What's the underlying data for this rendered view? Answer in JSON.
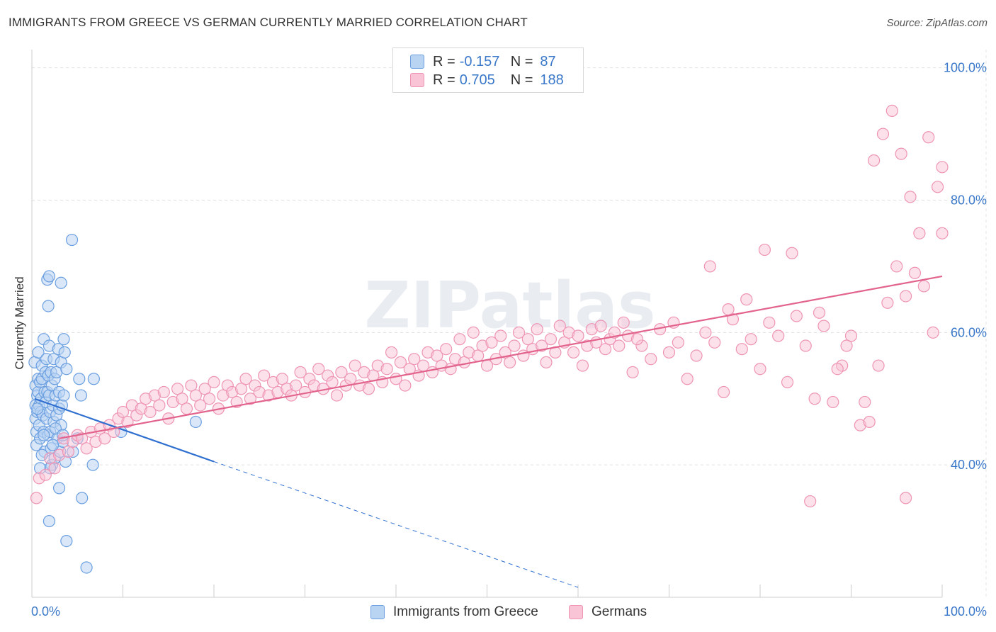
{
  "title": "IMMIGRANTS FROM GREECE VS GERMAN CURRENTLY MARRIED CORRELATION CHART",
  "source": "Source: ZipAtlas.com",
  "watermark": "ZIPatlas",
  "legend": {
    "rows": [
      {
        "r_label": "R =",
        "r_value": "-0.157",
        "n_label": "N =",
        "n_value": "87"
      },
      {
        "r_label": "R =",
        "r_value": "0.705",
        "n_label": "N =",
        "n_value": "188"
      }
    ]
  },
  "colors": {
    "greece_fill": "#b9d3f3",
    "greece_stroke": "#6b9fe0",
    "greece_line": "#2f6fd0",
    "german_fill": "#f9c4d6",
    "german_stroke": "#ee94b4",
    "german_line": "#e2648d",
    "axis_label": "#3a78c9",
    "grid": "#e0e0e0"
  },
  "chart_data": {
    "type": "scatter",
    "title": "IMMIGRANTS FROM GREECE VS GERMAN CURRENTLY MARRIED CORRELATION CHART",
    "xlabel": "",
    "ylabel": "Currently Married",
    "xlim": [
      0,
      100
    ],
    "ylim": [
      20,
      102
    ],
    "x_tick_labels": [
      "0.0%",
      "100.0%"
    ],
    "y_ticks": [
      40,
      60,
      80,
      100
    ],
    "y_tick_labels": [
      "40.0%",
      "60.0%",
      "80.0%",
      "100.0%"
    ],
    "grid": "horizontal dashed",
    "legend_placement": "top-center and bottom",
    "series": [
      {
        "name": "Immigrants from Greece",
        "r": -0.157,
        "n": 87,
        "trend": {
          "x0": 0.3,
          "y0": 50.0,
          "x1": 20.0,
          "y1": 40.5,
          "dashed_to_x": 60.0,
          "dashed_to_y": 21.5
        },
        "points": [
          [
            0.3,
            55.5
          ],
          [
            0.4,
            52
          ],
          [
            0.4,
            49
          ],
          [
            0.4,
            47
          ],
          [
            0.5,
            45
          ],
          [
            0.5,
            43
          ],
          [
            0.6,
            50.5
          ],
          [
            0.6,
            48
          ],
          [
            0.7,
            57
          ],
          [
            0.7,
            53
          ],
          [
            0.7,
            51
          ],
          [
            0.8,
            49
          ],
          [
            0.8,
            46
          ],
          [
            0.9,
            44
          ],
          [
            0.9,
            52.5
          ],
          [
            1.0,
            50
          ],
          [
            1.0,
            48
          ],
          [
            1.1,
            55
          ],
          [
            1.1,
            53
          ],
          [
            1.2,
            47.5
          ],
          [
            1.3,
            59
          ],
          [
            1.3,
            45
          ],
          [
            1.4,
            51
          ],
          [
            1.4,
            42
          ],
          [
            1.5,
            54
          ],
          [
            1.5,
            49.5
          ],
          [
            1.6,
            56
          ],
          [
            1.6,
            47
          ],
          [
            1.7,
            51
          ],
          [
            1.8,
            44.5
          ],
          [
            1.8,
            53.5
          ],
          [
            1.9,
            58
          ],
          [
            1.9,
            50.5
          ],
          [
            2.0,
            48
          ],
          [
            2.0,
            45
          ],
          [
            2.1,
            54
          ],
          [
            2.1,
            42.5
          ],
          [
            2.2,
            52
          ],
          [
            2.2,
            40
          ],
          [
            2.3,
            49
          ],
          [
            2.4,
            56
          ],
          [
            2.4,
            46.5
          ],
          [
            2.5,
            53
          ],
          [
            2.5,
            41
          ],
          [
            2.6,
            50.5
          ],
          [
            2.7,
            47.5
          ],
          [
            2.7,
            54
          ],
          [
            2.8,
            44
          ],
          [
            2.9,
            57.5
          ],
          [
            3.0,
            48.5
          ],
          [
            3.0,
            51
          ],
          [
            3.1,
            42
          ],
          [
            3.2,
            55.5
          ],
          [
            3.2,
            46
          ],
          [
            3.3,
            49
          ],
          [
            3.4,
            43.5
          ],
          [
            3.5,
            50.5
          ],
          [
            3.6,
            57
          ],
          [
            3.7,
            40.5
          ],
          [
            3.8,
            54.5
          ],
          [
            1.7,
            68
          ],
          [
            1.8,
            64
          ],
          [
            1.9,
            68.5
          ],
          [
            3.2,
            67.5
          ],
          [
            3.5,
            59
          ],
          [
            4.4,
            74
          ],
          [
            2.0,
            39.5
          ],
          [
            3.0,
            36.5
          ],
          [
            1.9,
            31.5
          ],
          [
            3.8,
            28.5
          ],
          [
            5.5,
            35
          ],
          [
            6.0,
            24.5
          ],
          [
            5.4,
            50.5
          ],
          [
            5.2,
            53
          ],
          [
            6.7,
            40
          ],
          [
            6.8,
            53
          ],
          [
            9.8,
            45
          ],
          [
            18.0,
            46.5
          ],
          [
            1.3,
            44.5
          ],
          [
            2.3,
            43
          ],
          [
            0.9,
            39.5
          ],
          [
            1.1,
            41.5
          ],
          [
            2.6,
            45.5
          ],
          [
            3.4,
            44.5
          ],
          [
            4.5,
            42
          ],
          [
            5.0,
            44
          ],
          [
            0.6,
            48.5
          ]
        ]
      },
      {
        "name": "Germans",
        "r": 0.705,
        "n": 188,
        "trend": {
          "x0": 3.0,
          "y0": 44.0,
          "x1": 100.0,
          "y1": 68.5
        },
        "points": [
          [
            0.5,
            35
          ],
          [
            0.8,
            38
          ],
          [
            1.5,
            38.5
          ],
          [
            2.0,
            41
          ],
          [
            2.5,
            39.5
          ],
          [
            3.0,
            41.5
          ],
          [
            3.5,
            44
          ],
          [
            4.0,
            42
          ],
          [
            4.5,
            43.5
          ],
          [
            5.0,
            44.5
          ],
          [
            5.5,
            44
          ],
          [
            6.0,
            42.5
          ],
          [
            6.5,
            45
          ],
          [
            7.0,
            43.5
          ],
          [
            7.5,
            45.5
          ],
          [
            8.0,
            44
          ],
          [
            8.5,
            46
          ],
          [
            9.0,
            45
          ],
          [
            9.5,
            47
          ],
          [
            10.0,
            48
          ],
          [
            10.5,
            46.5
          ],
          [
            11.0,
            49
          ],
          [
            11.5,
            47.5
          ],
          [
            12.0,
            48.5
          ],
          [
            12.5,
            50
          ],
          [
            13.0,
            48
          ],
          [
            13.5,
            50.5
          ],
          [
            14.0,
            49
          ],
          [
            14.5,
            51
          ],
          [
            15.0,
            47
          ],
          [
            15.5,
            49.5
          ],
          [
            16.0,
            51.5
          ],
          [
            16.5,
            50
          ],
          [
            17.0,
            48.5
          ],
          [
            17.5,
            52
          ],
          [
            18.0,
            50.5
          ],
          [
            18.5,
            49
          ],
          [
            19.0,
            51.5
          ],
          [
            19.5,
            50
          ],
          [
            20.0,
            52.5
          ],
          [
            20.5,
            48.5
          ],
          [
            21.0,
            50.5
          ],
          [
            21.5,
            52
          ],
          [
            22.0,
            51
          ],
          [
            22.5,
            49.5
          ],
          [
            23.0,
            51.5
          ],
          [
            23.5,
            53
          ],
          [
            24.0,
            50
          ],
          [
            24.5,
            52
          ],
          [
            25.0,
            51
          ],
          [
            25.5,
            53.5
          ],
          [
            26.0,
            50.5
          ],
          [
            26.5,
            52.5
          ],
          [
            27.0,
            51
          ],
          [
            27.5,
            53
          ],
          [
            28.0,
            51.5
          ],
          [
            28.5,
            50.5
          ],
          [
            29.0,
            52
          ],
          [
            29.5,
            54
          ],
          [
            30.0,
            51
          ],
          [
            30.5,
            53
          ],
          [
            31.0,
            52
          ],
          [
            31.5,
            54.5
          ],
          [
            32.0,
            51.5
          ],
          [
            32.5,
            53.5
          ],
          [
            33.0,
            52.5
          ],
          [
            33.5,
            50.5
          ],
          [
            34.0,
            54
          ],
          [
            34.5,
            52
          ],
          [
            35.0,
            53
          ],
          [
            35.5,
            55
          ],
          [
            36.0,
            52
          ],
          [
            36.5,
            54
          ],
          [
            37.0,
            51.5
          ],
          [
            37.5,
            53.5
          ],
          [
            38.0,
            55
          ],
          [
            38.5,
            52.5
          ],
          [
            39.0,
            54.5
          ],
          [
            39.5,
            57
          ],
          [
            40.0,
            53
          ],
          [
            40.5,
            55.5
          ],
          [
            41.0,
            52
          ],
          [
            41.5,
            54.5
          ],
          [
            42.0,
            56
          ],
          [
            42.5,
            53.5
          ],
          [
            43.0,
            55
          ],
          [
            43.5,
            57
          ],
          [
            44.0,
            54
          ],
          [
            44.5,
            56.5
          ],
          [
            45.0,
            55
          ],
          [
            45.5,
            57.5
          ],
          [
            46.0,
            54.5
          ],
          [
            46.5,
            56
          ],
          [
            47.0,
            59
          ],
          [
            47.5,
            55.5
          ],
          [
            48.0,
            57
          ],
          [
            48.5,
            60
          ],
          [
            49.0,
            56.5
          ],
          [
            49.5,
            58
          ],
          [
            50.0,
            55
          ],
          [
            50.5,
            58.5
          ],
          [
            51.0,
            56
          ],
          [
            51.5,
            59.5
          ],
          [
            52.0,
            57
          ],
          [
            52.5,
            55.5
          ],
          [
            53.0,
            58
          ],
          [
            53.5,
            60
          ],
          [
            54.0,
            56.5
          ],
          [
            54.5,
            59
          ],
          [
            55.0,
            57.5
          ],
          [
            55.5,
            60.5
          ],
          [
            56.0,
            58
          ],
          [
            56.5,
            55.5
          ],
          [
            57.0,
            59
          ],
          [
            57.5,
            57
          ],
          [
            58.0,
            61
          ],
          [
            58.5,
            58.5
          ],
          [
            59.0,
            60
          ],
          [
            59.5,
            57
          ],
          [
            60.0,
            59.5
          ],
          [
            60.5,
            55
          ],
          [
            61.0,
            58
          ],
          [
            61.5,
            60.5
          ],
          [
            62.0,
            58.5
          ],
          [
            62.5,
            61
          ],
          [
            63.0,
            57.5
          ],
          [
            63.5,
            59
          ],
          [
            64.0,
            60
          ],
          [
            64.5,
            58
          ],
          [
            65.0,
            61.5
          ],
          [
            65.5,
            59.5
          ],
          [
            66.0,
            54
          ],
          [
            67.0,
            58
          ],
          [
            68.0,
            56
          ],
          [
            69.0,
            60.5
          ],
          [
            70.0,
            57
          ],
          [
            71.0,
            58.5
          ],
          [
            72.0,
            53
          ],
          [
            73.0,
            56.5
          ],
          [
            74.0,
            60
          ],
          [
            75.0,
            58.5
          ],
          [
            76.0,
            51
          ],
          [
            77.0,
            62
          ],
          [
            78.0,
            57.5
          ],
          [
            79.0,
            59
          ],
          [
            80.0,
            54.5
          ],
          [
            81.0,
            61.5
          ],
          [
            82.0,
            59.5
          ],
          [
            83.0,
            52.5
          ],
          [
            84.0,
            62.5
          ],
          [
            85.0,
            58
          ],
          [
            86.0,
            50
          ],
          [
            87.0,
            61
          ],
          [
            88.0,
            49.5
          ],
          [
            89.0,
            55
          ],
          [
            90.0,
            59.5
          ],
          [
            91.0,
            46
          ],
          [
            92.0,
            46.5
          ],
          [
            93.0,
            55
          ],
          [
            94.0,
            64.5
          ],
          [
            95.0,
            70
          ],
          [
            96.0,
            65.5
          ],
          [
            97.0,
            69
          ],
          [
            98.0,
            67
          ],
          [
            99.0,
            60
          ],
          [
            100.0,
            75
          ],
          [
            74.5,
            70
          ],
          [
            78.5,
            65
          ],
          [
            80.5,
            72.5
          ],
          [
            83.5,
            72
          ],
          [
            85.5,
            34.5
          ],
          [
            92.5,
            86
          ],
          [
            93.5,
            90
          ],
          [
            94.5,
            93.5
          ],
          [
            95.5,
            87
          ],
          [
            96.5,
            80.5
          ],
          [
            97.5,
            75
          ],
          [
            98.5,
            89.5
          ],
          [
            99.5,
            82
          ],
          [
            100.0,
            85
          ],
          [
            91.5,
            49.5
          ],
          [
            96.0,
            35
          ],
          [
            86.5,
            63
          ],
          [
            88.5,
            54.5
          ],
          [
            89.5,
            58
          ],
          [
            76.5,
            63.5
          ],
          [
            70.5,
            61.5
          ],
          [
            66.5,
            59
          ]
        ]
      }
    ]
  },
  "bottom_legend": [
    {
      "label": "Immigrants from Greece"
    },
    {
      "label": "Germans"
    }
  ]
}
